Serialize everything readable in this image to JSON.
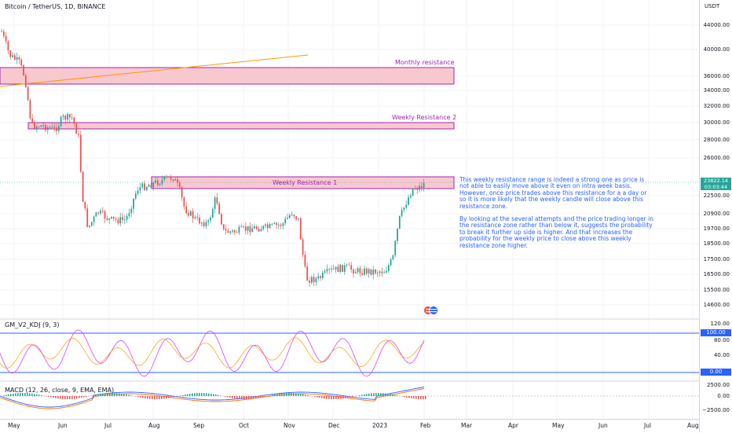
{
  "header": {
    "symbol_title": "Bitcoin / TetherUS, 1D, BINANCE"
  },
  "price_axis": {
    "currency": "USDT",
    "ticks": [
      "44000.00",
      "40000.00",
      "36000.00",
      "34000.00",
      "32000.00",
      "30000.00",
      "28000.00",
      "26000.00",
      "22500.00",
      "20900.00",
      "19700.00",
      "18500.00",
      "17500.00",
      "16500.00",
      "15500.00",
      "14600.00"
    ],
    "last_price": "23822.14",
    "countdown": "03:03:44"
  },
  "zones": {
    "monthly": "Monthly resistance",
    "weekly2": "Weekly Resistance 2",
    "weekly1": "Weekly Resistance 1"
  },
  "note": {
    "p1": "This weekly resistance range is indeed a strong one as price is not able to easily move above it even on intra week basis. However, once price trades above this resistance for a a day or so it is more likely that the weekly candle will close above this resistance zone.",
    "p2": "By looking at the several attempts and the price trading longer in the resistance zone rather than below it, suggests the probability to break it further up side is higher. And that increases the probability for the weekly price to close above this weekly resistance zone higher."
  },
  "kdj": {
    "label": "GM_V2_KDJ (9, 3)",
    "ticks": [
      "120.00",
      "80.00",
      "40.00"
    ],
    "upper_tag": "100.00",
    "lower_tag": "0.00"
  },
  "macd": {
    "label": "MACD (12, 26, close, 9, EMA, EMA)",
    "ticks": [
      "2500.00",
      "0.00",
      "−2500.00"
    ]
  },
  "time_axis": {
    "labels": [
      "May",
      "Jun",
      "Jul",
      "Aug",
      "Sep",
      "Oct",
      "Nov",
      "Dec",
      "2023",
      "Feb",
      "Mar",
      "Apr",
      "May",
      "Jun",
      "Jul",
      "Aug"
    ]
  },
  "colors": {
    "up": "#26a69a",
    "down": "#ef5350",
    "zone_fill": "#f8c8cf",
    "zone_border": "#9c27b0",
    "note_text": "#2962ff",
    "k_line": "#e040fb",
    "d_line": "#ff9800",
    "trend_line": "#ff9800"
  }
}
